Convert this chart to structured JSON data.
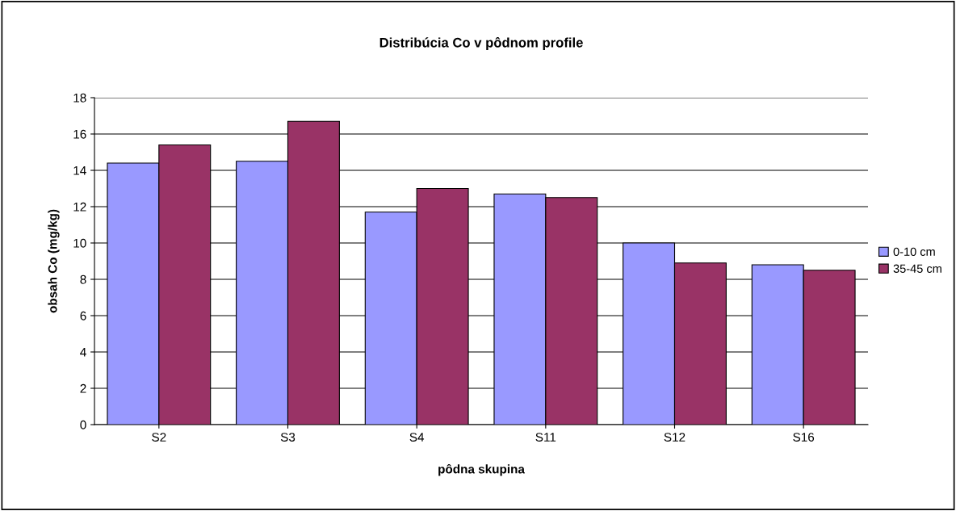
{
  "chart_data": {
    "type": "bar",
    "title": "Distribúcia Co v pôdnom profile",
    "xlabel": "pôdna skupina",
    "ylabel": "obsah Co (mg/kg)",
    "categories": [
      "S2",
      "S3",
      "S4",
      "S11",
      "S12",
      "S16"
    ],
    "series": [
      {
        "name": "0-10 cm",
        "color": "#9999ff",
        "values": [
          14.4,
          14.5,
          11.7,
          12.7,
          10.0,
          8.8
        ]
      },
      {
        "name": "35-45 cm",
        "color": "#993366",
        "values": [
          15.4,
          16.7,
          13.0,
          12.5,
          8.9,
          8.5
        ]
      }
    ],
    "ylim": [
      0,
      18
    ],
    "yticks": [
      0,
      2,
      4,
      6,
      8,
      10,
      12,
      14,
      16,
      18
    ],
    "grid": "y",
    "legend": "right"
  }
}
